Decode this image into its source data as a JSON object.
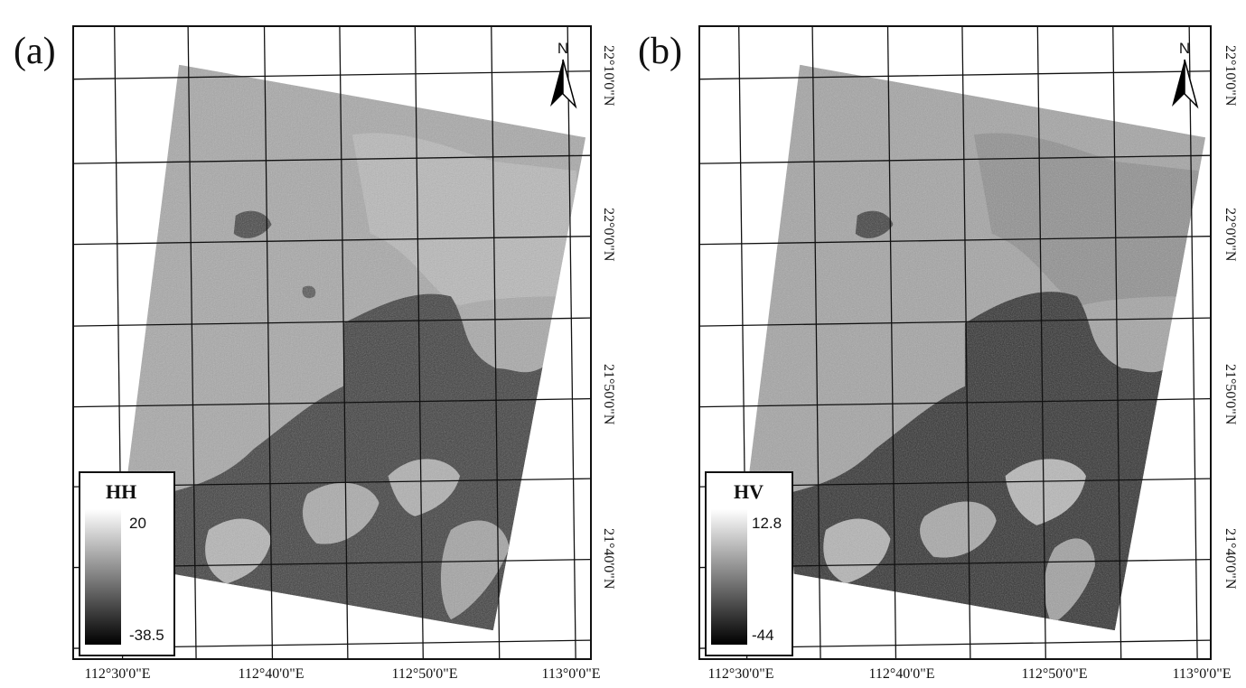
{
  "panels": [
    {
      "label": "(a)",
      "legend": {
        "title": "HH",
        "max": "20",
        "min": "-38.5"
      },
      "north_label": "N",
      "lon_labels": [
        "112°30'0\"E",
        "112°40'0\"E",
        "112°50'0\"E",
        "113°0'0\"E"
      ],
      "lat_labels": [
        "22°10'0\"N",
        "22°0'0\"N",
        "21°50'0\"N",
        "21°40'0\"N"
      ]
    },
    {
      "label": "(b)",
      "legend": {
        "title": "HV",
        "max": "12.8",
        "min": "-44"
      },
      "north_label": "N",
      "lon_labels": [
        "112°30'0\"E",
        "112°40'0\"E",
        "112°50'0\"E",
        "113°0'0\"E"
      ],
      "lat_labels": [
        "22°10'0\"N",
        "22°0'0\"N",
        "21°50'0\"N",
        "21°40'0\"N"
      ]
    }
  ],
  "colors": {
    "land_light": "#bdbdbd",
    "land_mid": "#9a9a9a",
    "water_dark": "#3a3a3a",
    "grid": "#111111"
  },
  "icons": {
    "north_arrow": "north-arrow-icon"
  }
}
